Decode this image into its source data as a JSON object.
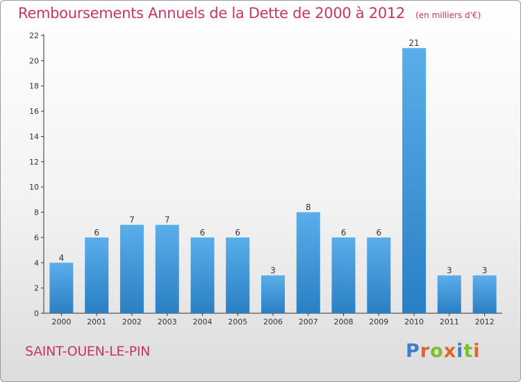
{
  "header": {
    "title": "Remboursements Annuels de la Dette de 2000 à 2012",
    "unit": "(en milliers d'€)"
  },
  "footer": {
    "commune": "SAINT-OUEN-LE-PIN",
    "brand": "Proxiti"
  },
  "colors": {
    "title": "#c8336a",
    "bar_light": "#5aaeea",
    "bar_dark": "#2a7fc4",
    "brand_letters": [
      "#3a7fd0",
      "#e0652a",
      "#7bbf2a",
      "#e0652a",
      "#3a7fd0",
      "#7bbf2a",
      "#e0652a"
    ]
  },
  "chart_data": {
    "type": "bar",
    "title": "Remboursements Annuels de la Dette de 2000 à 2012",
    "subtitle": "(en milliers d'€)",
    "xlabel": "",
    "ylabel": "",
    "categories": [
      "2000",
      "2001",
      "2002",
      "2003",
      "2004",
      "2005",
      "2006",
      "2007",
      "2008",
      "2009",
      "2010",
      "2011",
      "2012"
    ],
    "values": [
      4,
      6,
      7,
      7,
      6,
      6,
      3,
      8,
      6,
      6,
      21,
      3,
      3
    ],
    "ylim": [
      0,
      22
    ],
    "yticks": [
      0,
      2,
      4,
      6,
      8,
      10,
      12,
      14,
      16,
      18,
      20,
      22
    ],
    "grid": false,
    "legend": "none"
  }
}
